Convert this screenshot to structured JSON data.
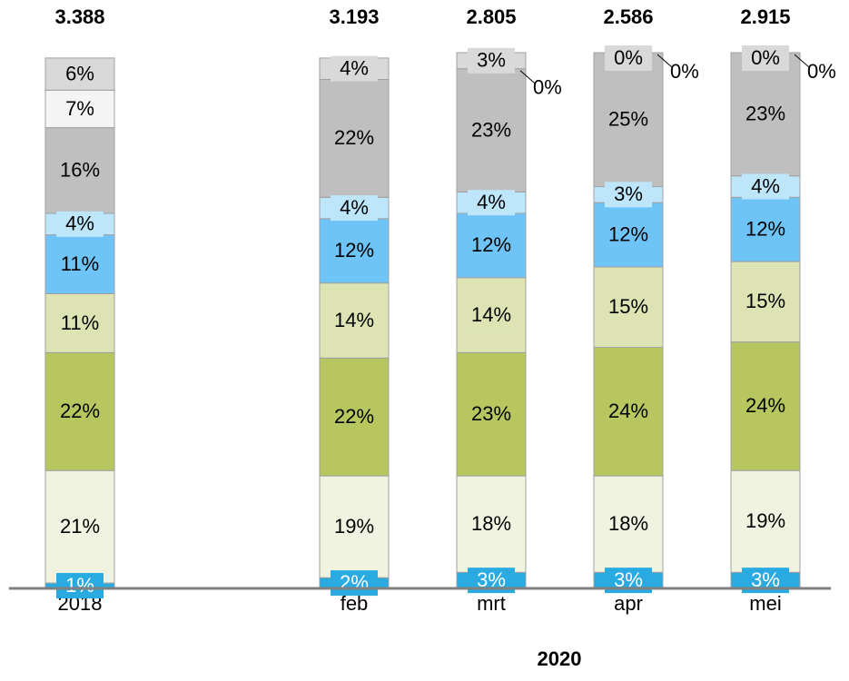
{
  "chart_data": {
    "type": "stacked_bar_100",
    "categories": [
      "2018",
      null,
      "feb",
      "mrt",
      "apr",
      "mei"
    ],
    "xlabel": "2020",
    "ylim": [
      0,
      100
    ],
    "totals": {
      "values": [
        3388,
        null,
        3193,
        2805,
        2586,
        2915
      ],
      "value_labels": [
        "3.388",
        null,
        "3.193",
        "2.805",
        "2.586",
        "2.915"
      ]
    },
    "series": [
      {
        "color": "#29abe2",
        "label_color": "#ffffff",
        "values": [
          1,
          null,
          2,
          3,
          3,
          3
        ],
        "value_labels": [
          "1%",
          null,
          "2%",
          "3%",
          "3%",
          "3%"
        ]
      },
      {
        "color": "#eff3df",
        "values": [
          21,
          null,
          19,
          18,
          18,
          19
        ],
        "value_labels": [
          "21%",
          null,
          "19%",
          "18%",
          "18%",
          "19%"
        ]
      },
      {
        "color": "#b8c65f",
        "values": [
          22,
          null,
          22,
          23,
          24,
          24
        ],
        "value_labels": [
          "22%",
          null,
          "22%",
          "23%",
          "24%",
          "24%"
        ]
      },
      {
        "color": "#dde3b3",
        "values": [
          11,
          null,
          14,
          14,
          15,
          15
        ],
        "value_labels": [
          "11%",
          null,
          "14%",
          "14%",
          "15%",
          "15%"
        ]
      },
      {
        "color": "#6fc4f7",
        "values": [
          11,
          null,
          12,
          12,
          12,
          12
        ],
        "value_labels": [
          "11%",
          null,
          "12%",
          "12%",
          "12%",
          "12%"
        ]
      },
      {
        "color": "#bde6fb",
        "values": [
          4,
          null,
          4,
          4,
          3,
          4
        ],
        "value_labels": [
          "4%",
          null,
          "4%",
          "4%",
          "3%",
          "4%"
        ]
      },
      {
        "color": "#bfbfbf",
        "values": [
          16,
          null,
          22,
          23,
          25,
          23
        ],
        "value_labels": [
          "16%",
          null,
          "22%",
          "23%",
          "25%",
          "23%"
        ]
      },
      {
        "color": "#f4f4f4",
        "values": [
          7,
          null,
          null,
          0,
          0,
          0
        ],
        "value_labels": [
          "7%",
          null,
          null,
          "0%",
          "0%",
          "0%"
        ]
      },
      {
        "color": "#d9d9d9",
        "values": [
          6,
          null,
          4,
          3,
          0,
          0
        ],
        "value_labels": [
          "6%",
          null,
          "4%",
          "3%",
          "0%",
          "0%"
        ]
      }
    ]
  }
}
